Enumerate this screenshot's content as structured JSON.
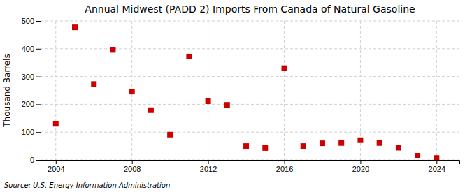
{
  "chart_data": {
    "type": "scatter",
    "title": "Annual Midwest (PADD 2) Imports From Canada of Natural Gasoline",
    "ylabel": "Thousand Barrels",
    "source": "Source: U.S. Energy Information Administration",
    "x": [
      2004,
      2005,
      2006,
      2007,
      2008,
      2009,
      2010,
      2011,
      2012,
      2013,
      2014,
      2015,
      2016,
      2017,
      2018,
      2019,
      2020,
      2021,
      2022,
      2023,
      2024
    ],
    "values": [
      130,
      477,
      273,
      396,
      246,
      179,
      91,
      372,
      211,
      198,
      50,
      43,
      330,
      50,
      60,
      61,
      71,
      61,
      44,
      15,
      7
    ],
    "color": "#cc0000",
    "marker": "square",
    "xlim": [
      2003.2,
      2025.2
    ],
    "ylim": [
      0,
      500
    ],
    "xticks": [
      2004,
      2008,
      2012,
      2016,
      2020,
      2024
    ],
    "yticks": [
      0,
      100,
      200,
      300,
      400,
      500
    ],
    "grid": true
  }
}
